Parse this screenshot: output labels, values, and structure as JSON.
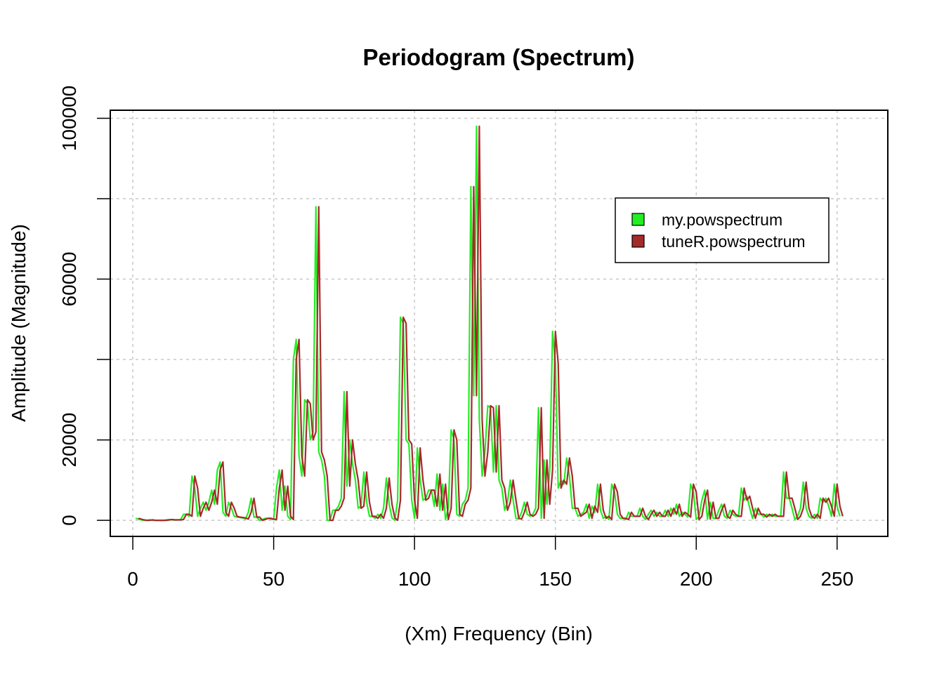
{
  "chart_data": {
    "type": "line",
    "title": "Periodogram (Spectrum)",
    "xlabel": "(Xm) Frequency (Bin)",
    "ylabel": "Amplitude (Magnitude)",
    "xlim": [
      -8,
      268
    ],
    "ylim": [
      -4000,
      102000
    ],
    "xticks": [
      0,
      50,
      100,
      150,
      200,
      250
    ],
    "xtick_labels": [
      "0",
      "50",
      "100",
      "150",
      "200",
      "250"
    ],
    "yticks": [
      0,
      20000,
      40000,
      60000,
      80000,
      100000
    ],
    "ytick_labels": [
      "0",
      "20000",
      "",
      "60000",
      "",
      "100000"
    ],
    "grid": true,
    "legend": {
      "position": "top-right",
      "box": true
    },
    "series": [
      {
        "name": "my.powspectrum",
        "color": "#22ee22",
        "x_start": 1,
        "values": [
          500,
          300,
          100,
          0,
          0,
          100,
          0,
          0,
          0,
          0,
          0,
          100,
          200,
          100,
          100,
          100,
          200,
          1500,
          1500,
          1000,
          11000,
          8000,
          1000,
          3000,
          4500,
          2500,
          4500,
          7500,
          4000,
          12500,
          14500,
          2000,
          1000,
          4500,
          3000,
          1000,
          800,
          700,
          600,
          300,
          2000,
          5500,
          800,
          800,
          0,
          200,
          500,
          500,
          300,
          200,
          8000,
          12500,
          2500,
          8500,
          1000,
          200,
          40000,
          45000,
          16000,
          11000,
          30000,
          29000,
          20000,
          22000,
          78000,
          17000,
          15000,
          11000,
          0,
          0,
          2500,
          2500,
          3500,
          5500,
          32000,
          8500,
          20000,
          14000,
          10000,
          3000,
          3500,
          12000,
          4500,
          1000,
          1000,
          500,
          1500,
          500,
          3000,
          10500,
          4000,
          600,
          0,
          5000,
          50500,
          49000,
          20000,
          19000,
          5000,
          500,
          18000,
          10000,
          5000,
          5500,
          7500,
          7500,
          3500,
          11500,
          2500,
          9000,
          200,
          3000,
          22500,
          20000,
          1500,
          1000,
          4000,
          5000,
          8000,
          83000,
          31000,
          98000,
          25000,
          11000,
          17000,
          28500,
          28000,
          12000,
          28500,
          10000,
          8000,
          2500,
          4500,
          10000,
          5000,
          500,
          300,
          2000,
          4500,
          1500,
          1000,
          1500,
          3000,
          28000,
          500,
          15000,
          4000,
          12500,
          47000,
          39000,
          8000,
          10000,
          9000,
          15500,
          11000,
          3000,
          3000,
          1000,
          1500,
          2000,
          4000,
          500,
          3500,
          2000,
          9000,
          2500,
          500,
          1000,
          200,
          9000,
          7000,
          1500,
          500,
          500,
          200,
          2000,
          1000,
          1000,
          1000,
          3000,
          1000,
          200,
          1500,
          2500,
          1000,
          2000,
          1000,
          1000,
          2500,
          1000,
          3000,
          1500,
          4000,
          1000,
          2000,
          1500,
          800,
          9000,
          7000,
          200,
          1000,
          5000,
          7500,
          300,
          4500,
          500,
          500,
          2500,
          4000,
          1000,
          500,
          2500,
          1500,
          1000,
          1000,
          8000,
          5000,
          6000,
          3000,
          500,
          3000,
          1500,
          1500,
          800,
          1500,
          1000,
          1500,
          1000,
          1000,
          1000,
          12000,
          5500,
          5500,
          3000,
          200,
          1000,
          3000,
          9500,
          3000,
          1000,
          500,
          1500,
          500,
          5500,
          4500,
          5500,
          3500,
          1000,
          9000,
          3500,
          1000
        ]
      },
      {
        "name": "tuneR.powspectrum",
        "color": "#a52a2a",
        "x_start": 2,
        "values": [
          500,
          300,
          100,
          0,
          0,
          100,
          0,
          0,
          0,
          0,
          0,
          100,
          200,
          100,
          100,
          100,
          200,
          1500,
          1500,
          1000,
          11000,
          8000,
          1000,
          3000,
          4500,
          2500,
          4500,
          7500,
          4000,
          12500,
          14500,
          2000,
          1000,
          4500,
          3000,
          1000,
          800,
          700,
          600,
          300,
          2000,
          5500,
          800,
          800,
          0,
          200,
          500,
          500,
          300,
          200,
          8000,
          12500,
          2500,
          8500,
          1000,
          200,
          40000,
          45000,
          16000,
          11000,
          30000,
          29000,
          20000,
          22000,
          78000,
          17000,
          15000,
          11000,
          0,
          0,
          2500,
          2500,
          3500,
          5500,
          32000,
          8500,
          20000,
          14000,
          10000,
          3000,
          3500,
          12000,
          4500,
          1000,
          1000,
          500,
          1500,
          500,
          3000,
          10500,
          4000,
          600,
          0,
          5000,
          50500,
          49000,
          20000,
          19000,
          5000,
          500,
          18000,
          10000,
          5000,
          5500,
          7500,
          7500,
          3500,
          11500,
          2500,
          9000,
          200,
          3000,
          22500,
          20000,
          1500,
          1000,
          4000,
          5000,
          8000,
          83000,
          31000,
          98000,
          25000,
          11000,
          17000,
          28500,
          28000,
          12000,
          28500,
          10000,
          8000,
          2500,
          4500,
          10000,
          5000,
          500,
          300,
          2000,
          4500,
          1500,
          1000,
          1500,
          3000,
          28000,
          500,
          15000,
          4000,
          12500,
          47000,
          39000,
          8000,
          10000,
          9000,
          15500,
          11000,
          3000,
          3000,
          1000,
          1500,
          2000,
          4000,
          500,
          3500,
          2000,
          9000,
          2500,
          500,
          1000,
          200,
          9000,
          7000,
          1500,
          500,
          500,
          200,
          2000,
          1000,
          1000,
          1000,
          3000,
          1000,
          200,
          1500,
          2500,
          1000,
          2000,
          1000,
          1000,
          2500,
          1000,
          3000,
          1500,
          4000,
          1000,
          2000,
          1500,
          800,
          9000,
          7000,
          200,
          1000,
          5000,
          7500,
          300,
          4500,
          500,
          500,
          2500,
          4000,
          1000,
          500,
          2500,
          1500,
          1000,
          1000,
          8000,
          5000,
          6000,
          3000,
          500,
          3000,
          1500,
          1500,
          800,
          1500,
          1000,
          1500,
          1000,
          1000,
          1000,
          12000,
          5500,
          5500,
          3000,
          200,
          1000,
          3000,
          9500,
          3000,
          1000,
          500,
          1500,
          500,
          5500,
          4500,
          5500,
          3500,
          1000,
          9000,
          3500,
          1000
        ]
      }
    ]
  }
}
